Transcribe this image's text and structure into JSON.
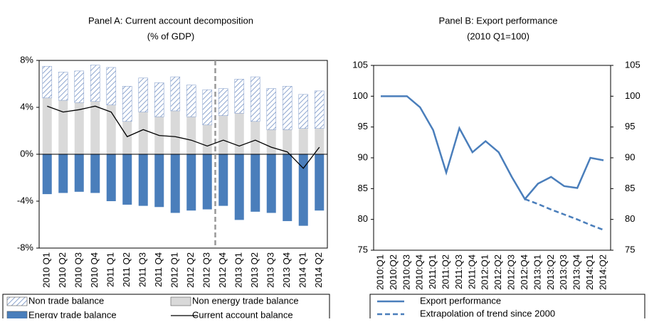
{
  "chart_data": [
    {
      "type": "bar",
      "title": "Panel A: Current account decomposition",
      "subtitle": "(% of GDP)",
      "categories": [
        "2010 Q1",
        "2010 Q2",
        "2010 Q3",
        "2010 Q4",
        "2011 Q1",
        "2011 Q2",
        "2011 Q3",
        "2011 Q4",
        "2012 Q1",
        "2012 Q2",
        "2012 Q3",
        "2012 Q4",
        "2013 Q1",
        "2013 Q2",
        "2013 Q3",
        "2013 Q4",
        "2014 Q1",
        "2014 Q2"
      ],
      "series": [
        {
          "name": "Non trade balance",
          "color": "#8ea6cf",
          "pattern": "hatch",
          "values": [
            2.7,
            2.4,
            2.7,
            3.1,
            3.2,
            3.0,
            2.9,
            2.9,
            2.9,
            2.7,
            3.0,
            2.3,
            2.9,
            3.8,
            3.5,
            3.7,
            2.9,
            3.2
          ]
        },
        {
          "name": "Non energy trade balance",
          "color": "#d9d9d9",
          "values": [
            4.8,
            4.6,
            4.4,
            4.5,
            4.2,
            2.8,
            3.6,
            3.2,
            3.7,
            3.2,
            2.5,
            3.3,
            3.5,
            2.8,
            2.1,
            2.1,
            2.2,
            2.2
          ]
        },
        {
          "name": "Energy trade balance",
          "color": "#4a7ebb",
          "values": [
            -3.4,
            -3.3,
            -3.2,
            -3.3,
            -4.0,
            -4.3,
            -4.4,
            -4.5,
            -5.0,
            -4.8,
            -4.7,
            -4.4,
            -5.6,
            -4.9,
            -5.0,
            -5.7,
            -6.1,
            -4.8
          ]
        },
        {
          "name": "Current account balance",
          "color": "#000000",
          "type": "line",
          "values": [
            4.1,
            3.6,
            3.8,
            4.1,
            3.6,
            1.5,
            2.1,
            1.6,
            1.5,
            1.2,
            0.7,
            1.2,
            0.7,
            1.2,
            0.6,
            0.2,
            -1.2,
            0.6
          ]
        }
      ],
      "ylim": [
        -8,
        8
      ],
      "yticks": [
        {
          "value": -8,
          "label": "-8%"
        },
        {
          "value": -4,
          "label": "-4%"
        },
        {
          "value": 0,
          "label": "0%"
        },
        {
          "value": 4,
          "label": "4%"
        },
        {
          "value": 8,
          "label": "8%"
        }
      ]
    },
    {
      "type": "line",
      "title": "Panel B: Export performance",
      "subtitle": "(2010 Q1=100)",
      "categories": [
        "2010:Q1",
        "2010:Q2",
        "2010:Q3",
        "2010:Q4",
        "2011:Q1",
        "2011:Q2",
        "2011:Q3",
        "2011:Q4",
        "2012:Q1",
        "2012:Q2",
        "2012:Q3",
        "2012:Q4",
        "2013:Q1",
        "2013:Q2",
        "2013:Q3",
        "2013:Q4",
        "2014:Q1",
        "2014:Q2"
      ],
      "series": [
        {
          "name": "Export performance",
          "color": "#4a7ebb",
          "values": [
            100,
            100,
            100,
            98.2,
            94.5,
            87.6,
            94.8,
            90.9,
            92.7,
            90.9,
            86.9,
            83.3,
            85.8,
            86.9,
            85.4,
            85.1,
            90.0,
            89.6
          ]
        },
        {
          "name": "Extrapolation of trend since 2000",
          "color": "#4a7ebb",
          "dashed": true,
          "values": [
            null,
            null,
            null,
            null,
            null,
            null,
            null,
            null,
            null,
            null,
            null,
            83.3,
            82.5,
            81.6,
            80.8,
            80.0,
            79.1,
            78.3
          ]
        }
      ],
      "ylim": [
        75,
        105
      ],
      "yticks": [
        75,
        80,
        85,
        90,
        95,
        100,
        105
      ],
      "y2lim": [
        75,
        105
      ],
      "y2ticks": [
        75,
        80,
        85,
        90,
        95,
        100,
        105
      ]
    }
  ]
}
